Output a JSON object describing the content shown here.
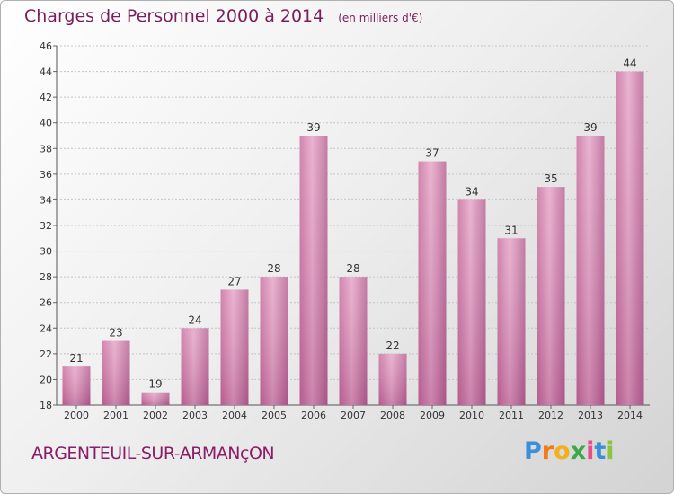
{
  "title": "Charges de Personnel 2000 à 2014",
  "unit": "(en milliers d'€)",
  "commune": "ARGENTEUIL-SUR-ARMANçON",
  "logo": {
    "letters": [
      "P",
      "r",
      "o",
      "x",
      "i",
      "t",
      "i"
    ],
    "colors": [
      "#3a8fd8",
      "#f07b1c",
      "#f2b01e",
      "#3ca84a",
      "#e84c8a",
      "#3a8fd8",
      "#8bc53f"
    ]
  },
  "colors": {
    "bar": "#d88ab6",
    "title": "#7a1e5a"
  },
  "chart_data": {
    "type": "bar",
    "title": "Charges de Personnel 2000 à 2014",
    "subtitle": "(en milliers d'€)",
    "categories": [
      "2000",
      "2001",
      "2002",
      "2003",
      "2004",
      "2005",
      "2006",
      "2007",
      "2008",
      "2009",
      "2010",
      "2011",
      "2012",
      "2013",
      "2014"
    ],
    "values": [
      21,
      23,
      19,
      24,
      27,
      28,
      39,
      28,
      22,
      37,
      34,
      31,
      35,
      39,
      44
    ],
    "yticks": [
      18,
      20,
      22,
      24,
      26,
      28,
      30,
      32,
      34,
      36,
      38,
      40,
      42,
      44,
      46
    ],
    "ylim": [
      18,
      46
    ],
    "grid": true,
    "xlabel": "",
    "ylabel": ""
  }
}
